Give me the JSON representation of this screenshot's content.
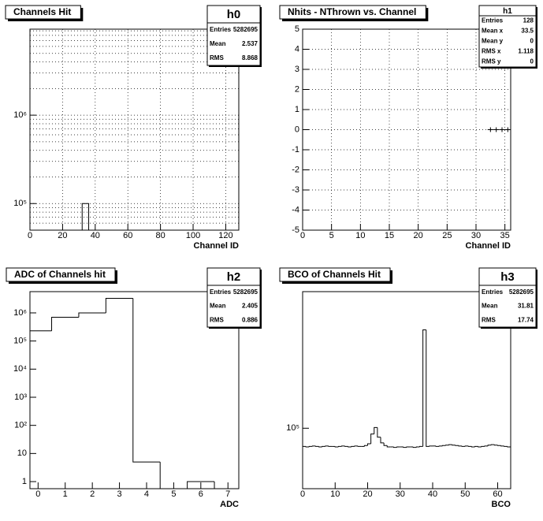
{
  "chart_data": [
    {
      "type": "histogram",
      "title": "Channels Hit",
      "xlabel": "Channel ID",
      "bins": [
        32,
        36
      ],
      "counts": [
        100000
      ],
      "color": "#000000",
      "xlim": [
        0,
        128
      ],
      "xticks": [
        0,
        20,
        40,
        60,
        80,
        100,
        120
      ],
      "ylim": [
        50000,
        9400000
      ],
      "log_y": true,
      "yticks": [
        {
          "value": 100000,
          "label": "10⁵"
        },
        {
          "value": 1000000,
          "label": "10⁶"
        }
      ],
      "yminor_ticks": [
        60000,
        70000,
        80000,
        90000,
        200000,
        300000,
        400000,
        500000,
        600000,
        700000,
        800000,
        900000,
        2000000,
        3000000,
        4000000,
        5000000,
        6000000,
        7000000,
        8000000,
        9000000
      ],
      "grid": true,
      "stats": {
        "name": "h0",
        "rows": [
          {
            "label": "Entries",
            "value": 5282695
          },
          {
            "label": "Mean",
            "value": 2.537
          },
          {
            "label": "RMS",
            "value": 8.868
          }
        ]
      }
    },
    {
      "type": "scatter",
      "title": "Nhits - NThrown vs. Channel",
      "xlabel": "Channel ID",
      "x": [
        32.5,
        33.5,
        34.5,
        35.5
      ],
      "y": [
        0,
        0,
        0,
        0
      ],
      "color": "#000000",
      "xlim": [
        0,
        36
      ],
      "xticks": [
        0,
        5,
        10,
        15,
        20,
        25,
        30,
        35
      ],
      "ylim": [
        -5,
        5
      ],
      "yticks": [
        -5,
        -4,
        -3,
        -2,
        -1,
        0,
        1,
        2,
        3,
        4,
        5
      ],
      "grid": true,
      "stats": {
        "name": "h1",
        "rows": [
          {
            "label": "Entries",
            "value": 128
          },
          {
            "label": "Mean x",
            "value": 33.5
          },
          {
            "label": "Mean y",
            "value": 0
          },
          {
            "label": "RMS x",
            "value": 1.118
          },
          {
            "label": "RMS y",
            "value": 0
          }
        ]
      }
    },
    {
      "type": "histogram",
      "title": "ADC of Channels hit",
      "xlabel": "ADC",
      "bins": [
        -0.5,
        0.5,
        1.5,
        2.5,
        3.5,
        4.5,
        5.5,
        6.5,
        7.5
      ],
      "counts": [
        230000,
        700000,
        1000000,
        3300000,
        5,
        0,
        1,
        0
      ],
      "color": "#000000",
      "xlim": [
        -0.3,
        7.4
      ],
      "xticks": [
        0,
        1,
        2,
        3,
        4,
        5,
        6,
        7
      ],
      "ylim": [
        0.56,
        5700000
      ],
      "log_y": true,
      "yticks": [
        1,
        10,
        {
          "value": 100,
          "label": "10²"
        },
        {
          "value": 1000,
          "label": "10³"
        },
        {
          "value": 10000,
          "label": "10⁴"
        },
        {
          "value": 100000,
          "label": "10⁵"
        },
        {
          "value": 1000000,
          "label": "10⁶"
        }
      ],
      "grid": false,
      "stats": {
        "name": "h2",
        "rows": [
          {
            "label": "Entries",
            "value": 5282695
          },
          {
            "label": "Mean",
            "value": 2.405
          },
          {
            "label": "RMS",
            "value": 0.886
          }
        ]
      }
    },
    {
      "type": "histogram",
      "title": "BCO of Channels Hit",
      "xlabel": "BCO",
      "bins": [
        0,
        1,
        2,
        3,
        4,
        5,
        6,
        7,
        8,
        9,
        10,
        11,
        12,
        13,
        14,
        15,
        16,
        17,
        18,
        19,
        20,
        21,
        22,
        23,
        24,
        25,
        26,
        27,
        28,
        29,
        30,
        31,
        32,
        33,
        34,
        35,
        36,
        37,
        38,
        39,
        40,
        41,
        42,
        43,
        44,
        45,
        46,
        47,
        48,
        49,
        50,
        51,
        52,
        53,
        54,
        55,
        56,
        57,
        58,
        59,
        60,
        61,
        62,
        63,
        64
      ],
      "counts": [
        77000,
        76500,
        77000,
        77500,
        77000,
        76500,
        77000,
        77500,
        77000,
        77000,
        76500,
        77000,
        77500,
        77000,
        76500,
        77000,
        77500,
        77000,
        77000,
        78000,
        80000,
        92000,
        101000,
        88000,
        81000,
        78000,
        76500,
        76500,
        76000,
        76500,
        76500,
        76000,
        76500,
        76500,
        76000,
        76500,
        77000,
        410000,
        77000,
        77500,
        77500,
        77000,
        77500,
        78000,
        78500,
        79000,
        78500,
        78000,
        77500,
        77000,
        77500,
        77000,
        76500,
        77000,
        76500,
        77000,
        77500,
        78500,
        79000,
        78500,
        78000,
        77500,
        77000,
        76500
      ],
      "color": "#000000",
      "xlim": [
        0,
        64
      ],
      "xticks": [
        0,
        10,
        20,
        30,
        40,
        50,
        60
      ],
      "ylim": [
        42000,
        710000
      ],
      "log_y": true,
      "yticks": [
        {
          "value": 100000,
          "label": "10⁵"
        }
      ],
      "grid": false,
      "stats": {
        "name": "h3",
        "rows": [
          {
            "label": "Entries",
            "value": 5282695
          },
          {
            "label": "Mean",
            "value": 31.81
          },
          {
            "label": "RMS",
            "value": 17.74
          }
        ]
      }
    }
  ]
}
